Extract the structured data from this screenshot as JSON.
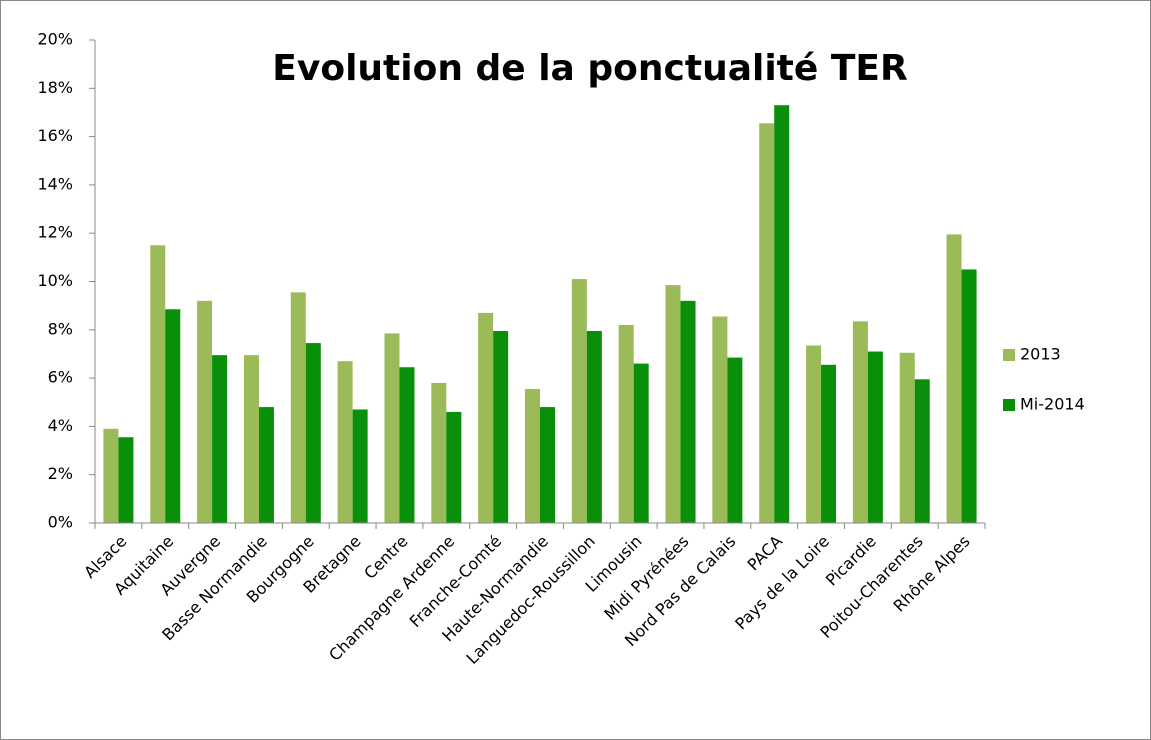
{
  "chart_data": {
    "type": "bar",
    "title": "Evolution de la ponctualité TER",
    "categories": [
      "Alsace",
      "Aquitaine",
      "Auvergne",
      "Basse Normandie",
      "Bourgogne",
      "Bretagne",
      "Centre",
      "Champagne Ardenne",
      "Franche-Comté",
      "Haute-Normandie",
      "Languedoc-Roussillon",
      "Limousin",
      "Midi Pyrénées",
      "Nord Pas de Calais",
      "PACA",
      "Pays de la Loire",
      "Picardie",
      "Poitou-Charentes",
      "Rhône Alpes"
    ],
    "series": [
      {
        "name": "2013",
        "color": "#9bbb59",
        "values": [
          3.9,
          11.5,
          9.2,
          6.95,
          9.55,
          6.7,
          7.85,
          5.8,
          8.7,
          5.55,
          10.1,
          8.2,
          9.85,
          8.55,
          16.55,
          7.35,
          8.35,
          7.05,
          11.95
        ]
      },
      {
        "name": "Mi-2014",
        "color": "#0a8f0a",
        "values": [
          3.55,
          8.85,
          6.95,
          4.8,
          7.45,
          4.7,
          6.45,
          4.6,
          7.95,
          4.8,
          7.95,
          6.6,
          9.2,
          6.85,
          17.3,
          6.55,
          7.1,
          5.95,
          10.5
        ]
      }
    ],
    "ylim": [
      0,
      20
    ],
    "yticks": [
      {
        "value": 0,
        "label": "0%"
      },
      {
        "value": 2,
        "label": "2%"
      },
      {
        "value": 4,
        "label": "4%"
      },
      {
        "value": 6,
        "label": "6%"
      },
      {
        "value": 8,
        "label": "8%"
      },
      {
        "value": 10,
        "label": "10%"
      },
      {
        "value": 12,
        "label": "12%"
      },
      {
        "value": 14,
        "label": "14%"
      },
      {
        "value": 16,
        "label": "16%"
      },
      {
        "value": 18,
        "label": "18%"
      },
      {
        "value": 20,
        "label": "20%"
      }
    ],
    "grid": false,
    "legend": "right"
  }
}
